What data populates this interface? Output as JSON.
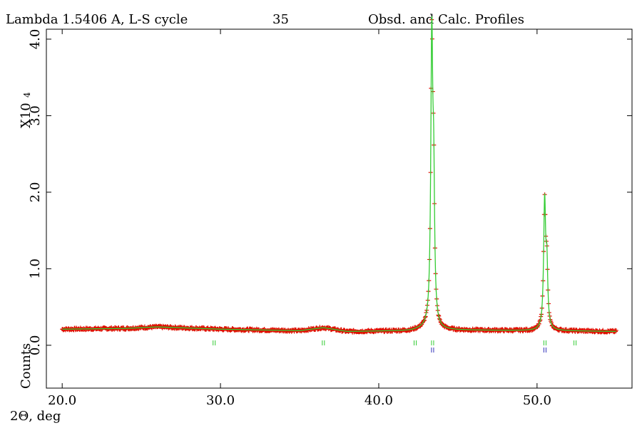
{
  "header": {
    "left": "Lambda 1.5406 A, L-S cycle",
    "cycle": "35",
    "right": "Obsd. and Calc. Profiles"
  },
  "chart_data": {
    "type": "line",
    "xlabel": "2Θ, deg",
    "ylabel": "Counts",
    "y_multiplier": "X10",
    "y_multiplier_exp": "4",
    "xlim": [
      19.0,
      56.0
    ],
    "ylim": [
      -0.56,
      4.13
    ],
    "x_ticks": [
      20.0,
      30.0,
      40.0,
      50.0
    ],
    "x_tick_labels": [
      "20.0",
      "30.0",
      "40.0",
      "50.0"
    ],
    "y_ticks": [
      0.0,
      1.0,
      2.0,
      3.0,
      4.0
    ],
    "y_tick_labels": [
      "0.0",
      "1.0",
      "2.0",
      "3.0",
      "4.0"
    ],
    "background": [
      [
        20,
        0.21
      ],
      [
        24,
        0.22
      ],
      [
        26,
        0.24
      ],
      [
        30,
        0.21
      ],
      [
        35,
        0.19
      ],
      [
        36.5,
        0.23
      ],
      [
        38,
        0.18
      ],
      [
        42,
        0.19
      ],
      [
        43.0,
        0.22
      ],
      [
        44,
        0.2
      ],
      [
        50.0,
        0.19
      ],
      [
        51.0,
        0.19
      ],
      [
        55,
        0.18
      ]
    ],
    "peaks": [
      {
        "center": 43.35,
        "height": 3.7,
        "width": 0.09
      },
      {
        "center": 43.47,
        "height": 1.6,
        "width": 0.08
      },
      {
        "center": 50.48,
        "height": 1.65,
        "width": 0.09
      },
      {
        "center": 50.62,
        "height": 0.75,
        "width": 0.08
      }
    ],
    "series": [
      {
        "role": "observed",
        "color": "#dd1100",
        "marker": "+"
      },
      {
        "role": "calculated",
        "color": "#33cc33"
      }
    ],
    "reflection_markers": [
      {
        "phase": 1,
        "color": "#33cc33",
        "x": [
          29.6,
          36.5,
          42.3,
          43.4,
          50.5,
          52.4
        ]
      },
      {
        "phase": 2,
        "color": "#3333bb",
        "x": [
          43.4,
          50.5
        ]
      }
    ]
  }
}
